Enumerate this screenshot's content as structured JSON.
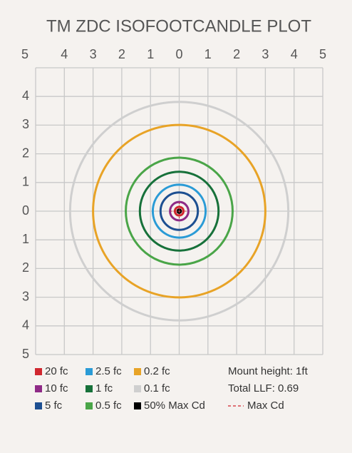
{
  "chart_data": {
    "type": "isofootcandle",
    "title": "TM ZDC ISOFOOTCANDLE PLOT",
    "xlim": [
      -5,
      5
    ],
    "ylim": [
      -5,
      5
    ],
    "xticks": [
      {
        "value": -5,
        "label": "5"
      },
      {
        "value": -4,
        "label": "4"
      },
      {
        "value": -3,
        "label": "3"
      },
      {
        "value": -2,
        "label": "2"
      },
      {
        "value": -1,
        "label": "1"
      },
      0,
      1,
      2,
      3,
      4,
      5
    ],
    "yticks": [
      {
        "value": 4,
        "label": "4"
      },
      {
        "value": 3,
        "label": "3"
      },
      {
        "value": 2,
        "label": "2"
      },
      {
        "value": 1,
        "label": "1"
      },
      {
        "value": 0,
        "label": "0"
      },
      {
        "value": -1,
        "label": "1"
      },
      {
        "value": -2,
        "label": "2"
      },
      {
        "value": -3,
        "label": "3"
      },
      {
        "value": -4,
        "label": "4"
      },
      {
        "value": -5,
        "label": "5"
      }
    ],
    "grid": true,
    "series": [
      {
        "name": "20 fc",
        "color": "#d0272f",
        "values": [
          0.15
        ]
      },
      {
        "name": "10 fc",
        "color": "#8e2a86",
        "values": [
          0.32
        ]
      },
      {
        "name": "5 fc",
        "color": "#1d4f91",
        "values": [
          0.65
        ]
      },
      {
        "name": "2.5 fc",
        "color": "#2a9bd6",
        "values": [
          0.92
        ]
      },
      {
        "name": "1 fc",
        "color": "#17713a",
        "values": [
          1.37
        ]
      },
      {
        "name": "0.5 fc",
        "color": "#4aa548",
        "values": [
          1.86
        ]
      },
      {
        "name": "0.2 fc",
        "color": "#e8a326",
        "values": [
          3.0
        ]
      },
      {
        "name": "0.1 fc",
        "color": "#cfcfcf",
        "values": [
          3.8
        ]
      },
      {
        "name": "50% Max Cd",
        "color": "#000000",
        "values": [
          0.06
        ]
      }
    ],
    "max_cd": {
      "name": "Max Cd",
      "color": "#d0272f"
    },
    "annotations": [
      "Mount height: 1ft",
      "Total LLF: 0.69"
    ]
  }
}
